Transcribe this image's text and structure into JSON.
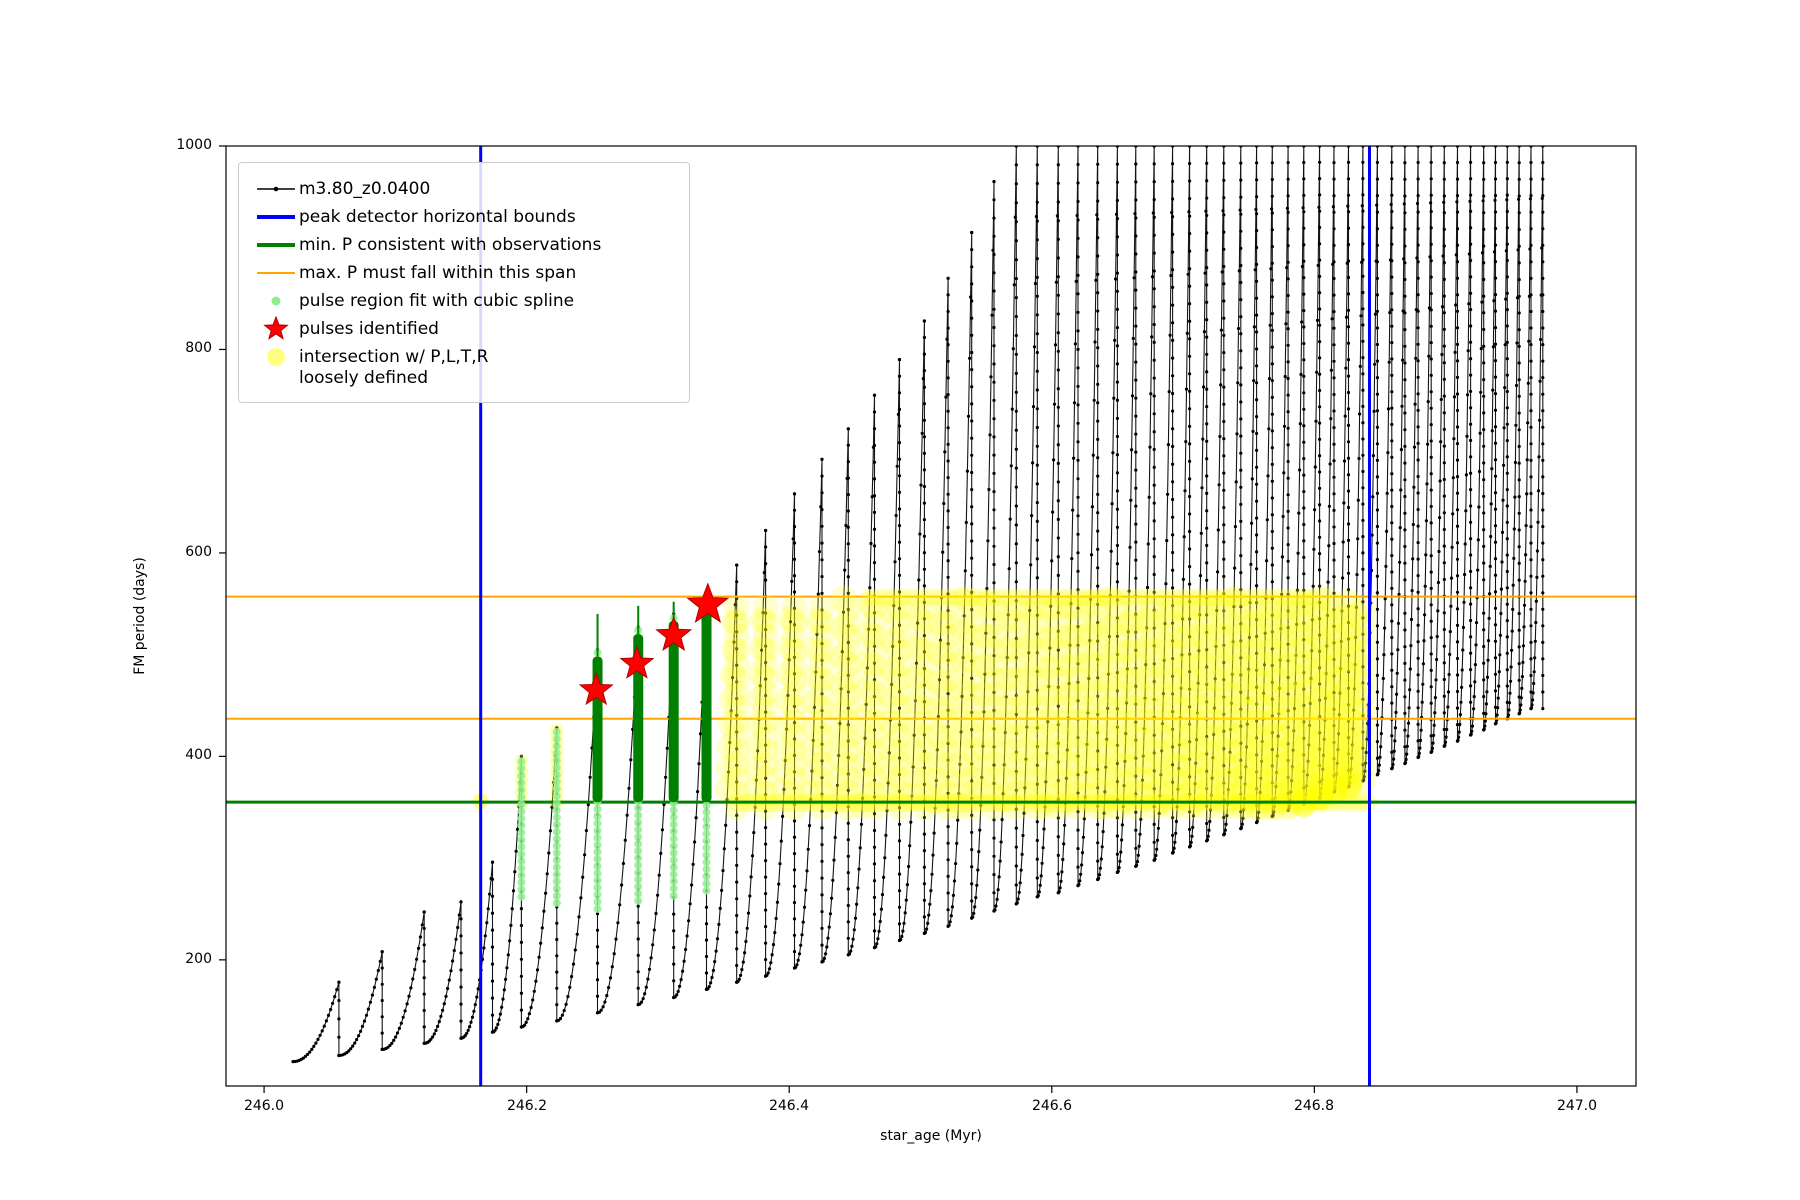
{
  "chart_data": {
    "type": "line",
    "title": "",
    "xlabel": "star_age (Myr)",
    "ylabel": "FM period (days)",
    "xlim": [
      245.971,
      247.045
    ],
    "ylim": [
      76,
      1000
    ],
    "xticks": {
      "values": [
        246.0,
        246.2,
        246.4,
        246.6,
        246.8,
        247.0
      ],
      "labels": [
        "246.0",
        "246.2",
        "246.4",
        "246.6",
        "246.8",
        "247.0"
      ]
    },
    "yticks": {
      "values": [
        200,
        400,
        600,
        800,
        1000
      ],
      "labels": [
        "200",
        "400",
        "600",
        "800",
        "1000"
      ]
    },
    "grid": false,
    "legend_loc": "upper left",
    "series_name": "m3.80_z0.0400",
    "legend": [
      {
        "label": "m3.80_z0.0400",
        "marker": "line-dot"
      },
      {
        "label": "peak detector horizontal bounds",
        "marker": "hline-blue"
      },
      {
        "label": "min. P consistent with observations",
        "marker": "hline-green"
      },
      {
        "label": "max. P must fall within this span",
        "marker": "hline-orange"
      },
      {
        "label": "pulse region fit with cubic spline",
        "marker": "dot-lightgreen"
      },
      {
        "label": "pulses identified",
        "marker": "star-red"
      },
      {
        "label": "intersection w/ P,L,T,R\nloosely defined",
        "marker": "dot-yellow"
      }
    ],
    "colors": {
      "series": "#000000",
      "peak_bounds": "#0000ff",
      "min_p": "#008000",
      "max_p_span": "#ffa500",
      "spline": "#90ee90",
      "pulse_star": "#ff0000",
      "intersection": "#ffff00"
    },
    "pulses": [
      [
        246.022,
        246.057,
        100,
        178
      ],
      [
        246.057,
        246.09,
        106,
        208
      ],
      [
        246.09,
        246.122,
        112,
        247
      ],
      [
        246.122,
        246.15,
        118,
        257
      ],
      [
        246.15,
        246.174,
        123,
        296
      ],
      [
        246.174,
        246.196,
        129,
        400
      ],
      [
        246.196,
        246.223,
        134,
        428
      ],
      [
        246.223,
        246.254,
        140,
        505
      ],
      [
        246.254,
        246.285,
        148,
        527
      ],
      [
        246.285,
        246.312,
        156,
        540
      ],
      [
        246.312,
        246.337,
        163,
        558
      ],
      [
        246.337,
        246.36,
        171,
        588
      ],
      [
        246.36,
        246.382,
        178,
        622
      ],
      [
        246.382,
        246.404,
        184,
        658
      ],
      [
        246.404,
        246.425,
        192,
        692
      ],
      [
        246.425,
        246.445,
        198,
        722
      ],
      [
        246.445,
        246.465,
        205,
        755
      ],
      [
        246.465,
        246.484,
        212,
        790
      ],
      [
        246.484,
        246.503,
        219,
        828
      ],
      [
        246.503,
        246.521,
        226,
        870
      ],
      [
        246.521,
        246.539,
        233,
        915
      ],
      [
        246.539,
        246.556,
        241,
        965
      ],
      [
        246.556,
        246.573,
        248,
        1000
      ],
      [
        246.573,
        246.589,
        255,
        1000
      ],
      [
        246.589,
        246.605,
        262,
        1000
      ],
      [
        246.605,
        246.62,
        266,
        1000
      ],
      [
        246.62,
        246.635,
        273,
        1000
      ],
      [
        246.635,
        246.65,
        279,
        1000
      ],
      [
        246.65,
        246.664,
        286,
        1000
      ],
      [
        246.664,
        246.678,
        292,
        1000
      ],
      [
        246.678,
        246.692,
        298,
        1000
      ],
      [
        246.692,
        246.705,
        305,
        1000
      ],
      [
        246.705,
        246.718,
        311,
        1000
      ],
      [
        246.718,
        246.731,
        317,
        1000
      ],
      [
        246.731,
        246.744,
        323,
        1000
      ],
      [
        246.744,
        246.756,
        329,
        1000
      ],
      [
        246.756,
        246.768,
        335,
        1000
      ],
      [
        246.768,
        246.78,
        341,
        1000
      ],
      [
        246.78,
        246.792,
        347,
        1000
      ],
      [
        246.792,
        246.804,
        353,
        1000
      ],
      [
        246.804,
        246.815,
        359,
        1000
      ],
      [
        246.815,
        246.826,
        365,
        1000
      ],
      [
        246.826,
        246.837,
        370,
        1000
      ],
      [
        246.837,
        246.848,
        376,
        1000
      ],
      [
        246.848,
        246.859,
        382,
        1000
      ],
      [
        246.859,
        246.869,
        388,
        1000
      ],
      [
        246.869,
        246.879,
        393,
        1000
      ],
      [
        246.879,
        246.889,
        399,
        1000
      ],
      [
        246.889,
        246.899,
        404,
        1000
      ],
      [
        246.899,
        246.909,
        410,
        1000
      ],
      [
        246.909,
        246.919,
        415,
        1000
      ],
      [
        246.919,
        246.929,
        421,
        1000
      ],
      [
        246.929,
        246.938,
        426,
        1000
      ],
      [
        246.938,
        246.947,
        432,
        1000
      ],
      [
        246.947,
        246.956,
        437,
        1000
      ],
      [
        246.956,
        246.965,
        442,
        1000
      ],
      [
        246.965,
        246.974,
        447,
        1000
      ]
    ],
    "peak_detector_bounds_x": [
      246.165,
      246.842
    ],
    "min_p_line_y": 355,
    "max_p_span_y": [
      437,
      557
    ],
    "spline_columns": [
      [
        246.196,
        262,
        398
      ],
      [
        246.223,
        256,
        426
      ],
      [
        246.254,
        250,
        503
      ],
      [
        246.285,
        258,
        525
      ],
      [
        246.312,
        263,
        538
      ],
      [
        246.337,
        268,
        556
      ]
    ],
    "green_bars": [
      [
        246.254,
        355,
        498,
        540
      ],
      [
        246.285,
        355,
        520,
        548
      ],
      [
        246.312,
        355,
        533,
        552
      ],
      [
        246.337,
        355,
        550,
        560
      ]
    ],
    "stars": [
      [
        246.253,
        465,
        17
      ],
      [
        246.284,
        491,
        17
      ],
      [
        246.312,
        519,
        18
      ],
      [
        246.338,
        549,
        21
      ]
    ],
    "yellow": {
      "baseline_y": 355,
      "cap_y": 556,
      "band_x": [
        246.36,
        246.842
      ],
      "cap_x": [
        246.46,
        246.8
      ],
      "arc_x_range": [
        246.35,
        246.845
      ],
      "y_range": [
        350,
        557
      ],
      "extra_columns": [
        [
          246.196,
          355,
          398
        ],
        [
          246.223,
          355,
          426
        ]
      ],
      "dots": [
        [
          246.165,
          356
        ]
      ]
    }
  }
}
